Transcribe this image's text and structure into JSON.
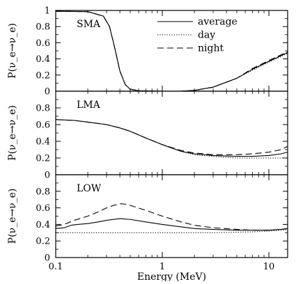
{
  "chart_data": [
    {
      "type": "line",
      "panel_label": "SMA",
      "ylabel": "P(ν_e→ν_e)",
      "ylim": [
        0,
        1
      ],
      "yticks": [
        0,
        0.2,
        0.4,
        0.6,
        0.8,
        1
      ],
      "ytick_labels": [
        "0",
        "0.2",
        "0.4",
        "0.6",
        "0.8",
        "1"
      ],
      "legend": {
        "placement": "top-right",
        "entries": [
          "average",
          "day",
          "night"
        ]
      },
      "series": [
        {
          "name": "average",
          "style": "solid",
          "points": [
            [
              0.1,
              0.99
            ],
            [
              0.2,
              0.985
            ],
            [
              0.28,
              0.93
            ],
            [
              0.32,
              0.8
            ],
            [
              0.36,
              0.52
            ],
            [
              0.4,
              0.25
            ],
            [
              0.45,
              0.08
            ],
            [
              0.5,
              0.025
            ],
            [
              0.6,
              0.005
            ],
            [
              0.8,
              0.002
            ],
            [
              1,
              0.0
            ],
            [
              1.5,
              0.0
            ],
            [
              2,
              0.01
            ],
            [
              3,
              0.05
            ],
            [
              5,
              0.16
            ],
            [
              7,
              0.27
            ],
            [
              10,
              0.37
            ],
            [
              13,
              0.44
            ],
            [
              15,
              0.48
            ]
          ]
        },
        {
          "name": "day",
          "style": "dotted",
          "points": [
            [
              0.1,
              0.99
            ],
            [
              0.2,
              0.985
            ],
            [
              0.28,
              0.93
            ],
            [
              0.32,
              0.8
            ],
            [
              0.36,
              0.52
            ],
            [
              0.4,
              0.25
            ],
            [
              0.45,
              0.08
            ],
            [
              0.5,
              0.025
            ],
            [
              0.6,
              0.005
            ],
            [
              0.8,
              0.002
            ],
            [
              1,
              0.0
            ],
            [
              1.5,
              0.0
            ],
            [
              2,
              0.01
            ],
            [
              3,
              0.05
            ],
            [
              5,
              0.16
            ],
            [
              7,
              0.26
            ],
            [
              10,
              0.36
            ],
            [
              13,
              0.43
            ],
            [
              15,
              0.47
            ]
          ]
        },
        {
          "name": "night",
          "style": "dashed",
          "points": [
            [
              0.1,
              0.99
            ],
            [
              0.2,
              0.985
            ],
            [
              0.28,
              0.93
            ],
            [
              0.32,
              0.8
            ],
            [
              0.36,
              0.52
            ],
            [
              0.4,
              0.25
            ],
            [
              0.45,
              0.08
            ],
            [
              0.5,
              0.025
            ],
            [
              0.6,
              0.005
            ],
            [
              0.8,
              0.002
            ],
            [
              1,
              0.0
            ],
            [
              1.5,
              0.0
            ],
            [
              2,
              0.01
            ],
            [
              3,
              0.05
            ],
            [
              5,
              0.16
            ],
            [
              7,
              0.28
            ],
            [
              10,
              0.38
            ],
            [
              13,
              0.45
            ],
            [
              15,
              0.49
            ]
          ]
        }
      ]
    },
    {
      "type": "line",
      "panel_label": "LMA",
      "ylabel": "P(ν_e→ν_e)",
      "ylim": [
        0,
        1
      ],
      "yticks": [
        0,
        0.2,
        0.4,
        0.6,
        0.8
      ],
      "ytick_labels": [
        "0",
        "0.2",
        "0.4",
        "0.6",
        "0.8"
      ],
      "series": [
        {
          "name": "average",
          "style": "solid",
          "points": [
            [
              0.1,
              0.66
            ],
            [
              0.15,
              0.65
            ],
            [
              0.2,
              0.63
            ],
            [
              0.3,
              0.6
            ],
            [
              0.4,
              0.56
            ],
            [
              0.5,
              0.52
            ],
            [
              0.7,
              0.44
            ],
            [
              1,
              0.36
            ],
            [
              1.5,
              0.28
            ],
            [
              2,
              0.25
            ],
            [
              3,
              0.23
            ],
            [
              5,
              0.22
            ],
            [
              7,
              0.22
            ],
            [
              10,
              0.23
            ],
            [
              13,
              0.25
            ],
            [
              15,
              0.27
            ]
          ]
        },
        {
          "name": "day",
          "style": "dotted",
          "points": [
            [
              0.1,
              0.66
            ],
            [
              0.15,
              0.65
            ],
            [
              0.2,
              0.63
            ],
            [
              0.3,
              0.6
            ],
            [
              0.4,
              0.56
            ],
            [
              0.5,
              0.52
            ],
            [
              0.7,
              0.44
            ],
            [
              1,
              0.36
            ],
            [
              1.5,
              0.28
            ],
            [
              2,
              0.24
            ],
            [
              3,
              0.22
            ],
            [
              5,
              0.2
            ],
            [
              7,
              0.2
            ],
            [
              10,
              0.2
            ],
            [
              13,
              0.2
            ],
            [
              15,
              0.2
            ]
          ]
        },
        {
          "name": "night",
          "style": "dashed",
          "points": [
            [
              0.1,
              0.66
            ],
            [
              0.15,
              0.65
            ],
            [
              0.2,
              0.63
            ],
            [
              0.3,
              0.6
            ],
            [
              0.4,
              0.56
            ],
            [
              0.5,
              0.52
            ],
            [
              0.7,
              0.44
            ],
            [
              1,
              0.36
            ],
            [
              1.5,
              0.29
            ],
            [
              2,
              0.26
            ],
            [
              3,
              0.24
            ],
            [
              5,
              0.24
            ],
            [
              7,
              0.25
            ],
            [
              10,
              0.27
            ],
            [
              13,
              0.3
            ],
            [
              15,
              0.34
            ]
          ]
        }
      ]
    },
    {
      "type": "line",
      "panel_label": "LOW",
      "ylabel": "P(ν_e→ν_e)",
      "ylim": [
        0,
        1
      ],
      "yticks": [
        0,
        0.2,
        0.4,
        0.6,
        0.8
      ],
      "ytick_labels": [
        "0",
        "0.2",
        "0.4",
        "0.6",
        "0.8"
      ],
      "xlabel": "Energy (MeV)",
      "xscale": "log",
      "xlim": [
        0.1,
        15
      ],
      "xtick_labels": [
        "0.1",
        "1",
        "10"
      ],
      "series": [
        {
          "name": "average",
          "style": "solid",
          "points": [
            [
              0.1,
              0.35
            ],
            [
              0.12,
              0.36
            ],
            [
              0.14,
              0.39
            ],
            [
              0.16,
              0.4
            ],
            [
              0.2,
              0.41
            ],
            [
              0.25,
              0.43
            ],
            [
              0.3,
              0.45
            ],
            [
              0.4,
              0.47
            ],
            [
              0.5,
              0.46
            ],
            [
              0.7,
              0.43
            ],
            [
              1,
              0.4
            ],
            [
              1.5,
              0.37
            ],
            [
              2,
              0.35
            ],
            [
              3,
              0.34
            ],
            [
              5,
              0.33
            ],
            [
              7,
              0.33
            ],
            [
              10,
              0.33
            ],
            [
              13,
              0.34
            ],
            [
              15,
              0.35
            ]
          ]
        },
        {
          "name": "day",
          "style": "dotted",
          "points": [
            [
              0.1,
              0.3
            ],
            [
              0.5,
              0.3
            ],
            [
              1,
              0.3
            ],
            [
              3,
              0.3
            ],
            [
              7,
              0.31
            ],
            [
              10,
              0.32
            ],
            [
              13,
              0.33
            ],
            [
              15,
              0.34
            ]
          ]
        },
        {
          "name": "night",
          "style": "dashed",
          "points": [
            [
              0.1,
              0.38
            ],
            [
              0.12,
              0.4
            ],
            [
              0.15,
              0.45
            ],
            [
              0.2,
              0.5
            ],
            [
              0.25,
              0.55
            ],
            [
              0.3,
              0.6
            ],
            [
              0.35,
              0.63
            ],
            [
              0.4,
              0.65
            ],
            [
              0.45,
              0.645
            ],
            [
              0.5,
              0.63
            ],
            [
              0.7,
              0.57
            ],
            [
              1,
              0.5
            ],
            [
              1.5,
              0.43
            ],
            [
              2,
              0.39
            ],
            [
              3,
              0.36
            ],
            [
              5,
              0.34
            ],
            [
              7,
              0.33
            ],
            [
              10,
              0.33
            ],
            [
              13,
              0.34
            ],
            [
              15,
              0.35
            ]
          ]
        }
      ]
    }
  ]
}
